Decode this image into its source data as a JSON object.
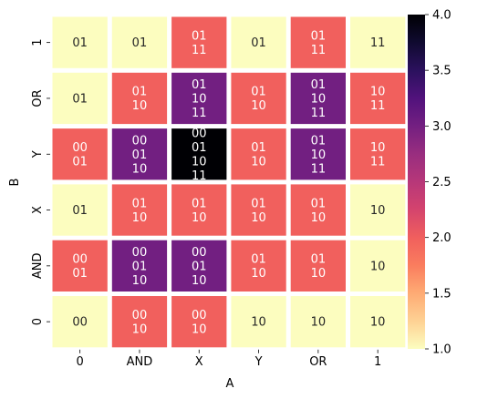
{
  "chart_data": {
    "type": "heatmap",
    "xlabel": "A",
    "ylabel": "B",
    "x_categories": [
      "0",
      "AND",
      "X",
      "Y",
      "OR",
      "1"
    ],
    "y_categories": [
      "1",
      "OR",
      "Y",
      "X",
      "AND",
      "0"
    ],
    "values": [
      [
        1,
        1,
        2,
        1,
        2,
        1
      ],
      [
        1,
        2,
        3,
        2,
        3,
        2
      ],
      [
        2,
        3,
        4,
        2,
        3,
        2
      ],
      [
        1,
        2,
        2,
        2,
        2,
        1
      ],
      [
        2,
        3,
        3,
        2,
        2,
        1
      ],
      [
        1,
        2,
        2,
        1,
        1,
        1
      ]
    ],
    "annotations": [
      [
        [
          "01"
        ],
        [
          "01"
        ],
        [
          "01",
          "11"
        ],
        [
          "01"
        ],
        [
          "01",
          "11"
        ],
        [
          "11"
        ]
      ],
      [
        [
          "01"
        ],
        [
          "01",
          "10"
        ],
        [
          "01",
          "10",
          "11"
        ],
        [
          "01",
          "10"
        ],
        [
          "01",
          "10",
          "11"
        ],
        [
          "10",
          "11"
        ]
      ],
      [
        [
          "00",
          "01"
        ],
        [
          "00",
          "01",
          "10"
        ],
        [
          "00",
          "01",
          "10",
          "11"
        ],
        [
          "01",
          "10"
        ],
        [
          "01",
          "10",
          "11"
        ],
        [
          "10",
          "11"
        ]
      ],
      [
        [
          "01"
        ],
        [
          "01",
          "10"
        ],
        [
          "01",
          "10"
        ],
        [
          "01",
          "10"
        ],
        [
          "01",
          "10"
        ],
        [
          "10"
        ]
      ],
      [
        [
          "00",
          "01"
        ],
        [
          "00",
          "01",
          "10"
        ],
        [
          "00",
          "01",
          "10"
        ],
        [
          "01",
          "10"
        ],
        [
          "01",
          "10"
        ],
        [
          "10"
        ]
      ],
      [
        [
          "00"
        ],
        [
          "00",
          "10"
        ],
        [
          "00",
          "10"
        ],
        [
          "10"
        ],
        [
          "10"
        ],
        [
          "10"
        ]
      ]
    ],
    "colormap": "magma_r",
    "colorbar": {
      "range": [
        1.0,
        4.0
      ],
      "ticks": [
        "1.0",
        "1.5",
        "2.0",
        "2.5",
        "3.0",
        "3.5",
        "4.0"
      ]
    },
    "colors": {
      "1": "#fcfdbf",
      "2": "#f1605d",
      "3": "#721f81",
      "4": "#000004"
    }
  }
}
